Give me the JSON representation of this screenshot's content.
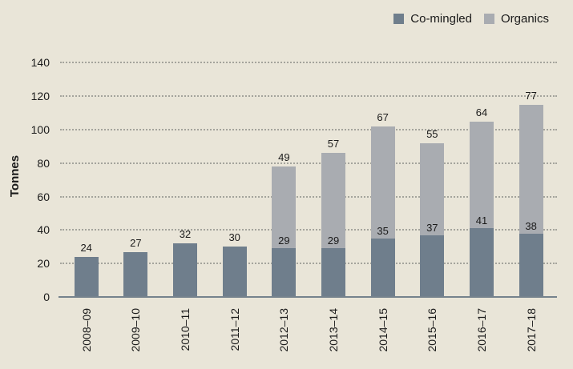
{
  "page": {
    "background_color": "#e9e5d8",
    "text_color": "#1a1a1a",
    "gridline_color": "#a4a49c",
    "axis_color": "#75828d"
  },
  "chart_data": {
    "type": "bar",
    "stacked": true,
    "title": "",
    "xlabel": "",
    "ylabel": "Tonnes",
    "categories": [
      "2008–09",
      "2009–10",
      "2010–11",
      "2011–12",
      "2012–13",
      "2013–14",
      "2014–15",
      "2015–16",
      "2016–17",
      "2017–18"
    ],
    "series": [
      {
        "name": "Co-mingled",
        "color": "#6f7e8c",
        "values": [
          24,
          27,
          32,
          30,
          29,
          29,
          35,
          37,
          41,
          38
        ]
      },
      {
        "name": "Organics",
        "color": "#a9acb1",
        "values": [
          0,
          0,
          0,
          0,
          49,
          57,
          67,
          55,
          64,
          77
        ]
      }
    ],
    "ylim": [
      0,
      140
    ],
    "yticks": [
      0,
      20,
      40,
      60,
      80,
      100,
      120,
      140
    ],
    "grid": "horizontal-dotted",
    "legend_position": "top-right",
    "bar_label_style": "each segment labeled with its own value; single-segment bars labeled above bar"
  }
}
